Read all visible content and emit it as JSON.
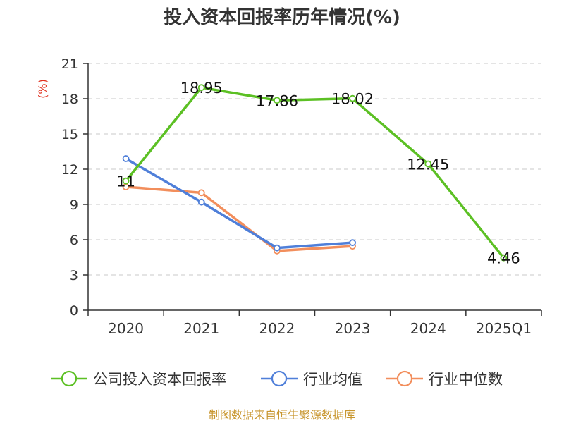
{
  "chart_data": {
    "type": "line",
    "title": "投入资本回报率历年情况(%)",
    "ylabel": "(%)",
    "xlabel": "",
    "categories": [
      "2020",
      "2021",
      "2022",
      "2023",
      "2024",
      "2025Q1"
    ],
    "ylim": [
      0,
      21
    ],
    "yticks": [
      0,
      3,
      6,
      9,
      12,
      15,
      18,
      21
    ],
    "grid": true,
    "legend_position": "bottom",
    "series": [
      {
        "name": "公司投入资本回报率",
        "color": "#5cc024",
        "values": [
          11,
          18.95,
          17.86,
          18.02,
          12.45,
          4.46
        ],
        "labels": [
          "11",
          "18.95",
          "17.86",
          "18.02",
          "12.45",
          "4.46"
        ]
      },
      {
        "name": "行业均值",
        "color": "#4f7fd9",
        "values": [
          12.9,
          9.2,
          5.3,
          5.75,
          null,
          null
        ]
      },
      {
        "name": "行业中位数",
        "color": "#f28e5c",
        "values": [
          10.5,
          10.0,
          5.05,
          5.45,
          null,
          null
        ]
      }
    ]
  },
  "source": "制图数据来自恒生聚源数据库"
}
